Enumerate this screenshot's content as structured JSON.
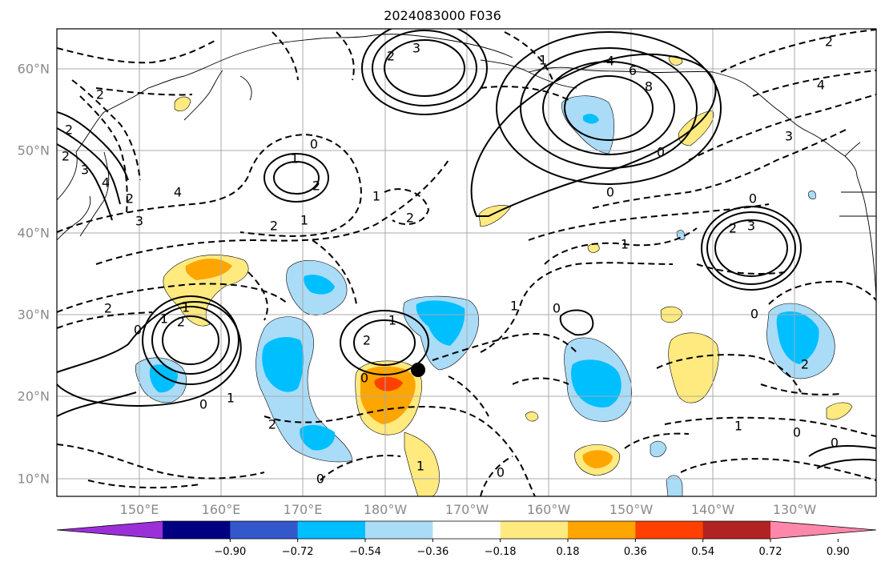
{
  "title": "2024083000 F036",
  "map": {
    "lon_labels": [
      "150°E",
      "160°E",
      "170°E",
      "180°W",
      "170°W",
      "160°W",
      "150°W",
      "140°W",
      "130°W"
    ],
    "lat_labels": [
      "60°N",
      "50°N",
      "40°N",
      "30°N",
      "20°N",
      "10°N"
    ],
    "contour_labels": [
      "3",
      "2",
      "4",
      "6",
      "8",
      "0",
      "0",
      "1",
      "2",
      "1",
      "2",
      "1",
      "2",
      "0",
      "4",
      "2",
      "3",
      "0",
      "1",
      "2",
      "1",
      "2",
      "0",
      "2",
      "1",
      "3",
      "2",
      "0",
      "1",
      "0",
      "1",
      "1",
      "2",
      "0",
      "2",
      "1",
      "0",
      "0",
      "0",
      "3",
      "2",
      "2",
      "1",
      "0",
      "1",
      "4",
      "2",
      "4",
      "2",
      "3",
      "0"
    ],
    "grid": true,
    "marker": "storm-position"
  },
  "colorbar": {
    "tick_labels": [
      "−0.90",
      "−0.72",
      "−0.54",
      "−0.36",
      "−0.18",
      "0.18",
      "0.36",
      "0.54",
      "0.72",
      "0.90"
    ],
    "colors": [
      "#9b30d9",
      "#000080",
      "#3358cc",
      "#00bfff",
      "#aadcf8",
      "#ffffff",
      "#ffea80",
      "#ffa500",
      "#ff4000",
      "#b22222",
      "#ff88aa"
    ]
  }
}
